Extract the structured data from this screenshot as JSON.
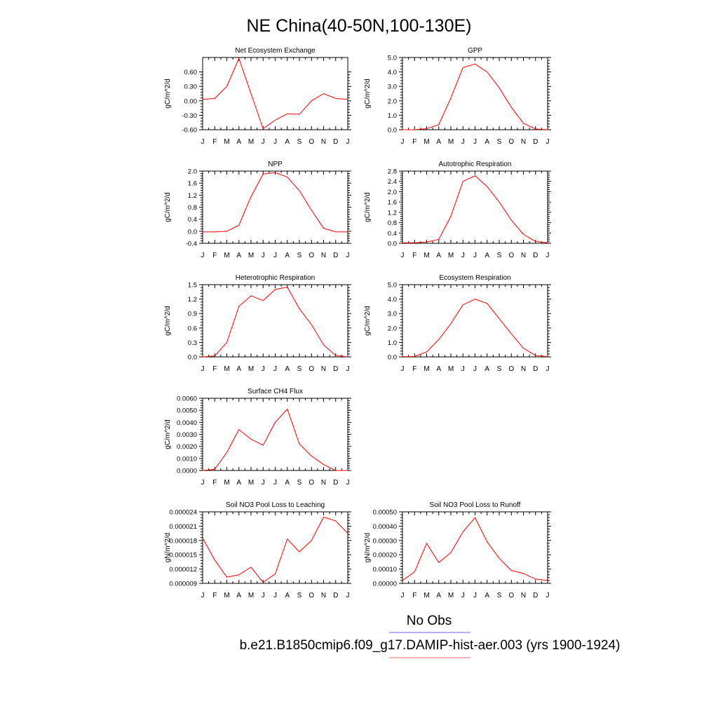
{
  "figure": {
    "title": "NE China(40-50N,100-130E)",
    "legend": [
      {
        "label": "No Obs",
        "color": "#6666ff"
      },
      {
        "label": "b.e21.B1850cmip6.f09_g17.DAMIP-hist-aer.003 (yrs 1900-1924)",
        "color": "#ff6666"
      }
    ]
  },
  "chart_data": [
    {
      "type": "line",
      "title": "Net Ecosystem Exchange",
      "ylabel": "gC/m^2/d",
      "x": [
        "J",
        "F",
        "M",
        "A",
        "M",
        "J",
        "J",
        "A",
        "S",
        "O",
        "N",
        "D",
        "J"
      ],
      "ylim": [
        -0.6,
        0.9
      ],
      "yticks": [
        -0.6,
        -0.3,
        0.0,
        0.3,
        0.6
      ],
      "ytick_labels": [
        "-0.60",
        "-0.30",
        "0.00",
        "0.30",
        "0.60"
      ],
      "series": [
        {
          "color": "#ff0000",
          "values": [
            0.03,
            0.05,
            0.3,
            0.88,
            0.15,
            -0.58,
            -0.4,
            -0.27,
            -0.28,
            0.0,
            0.15,
            0.05,
            0.03
          ]
        }
      ]
    },
    {
      "type": "line",
      "title": "GPP",
      "ylabel": "gC/m^2/d",
      "x": [
        "J",
        "F",
        "M",
        "A",
        "M",
        "J",
        "J",
        "A",
        "S",
        "O",
        "N",
        "D",
        "J"
      ],
      "ylim": [
        0,
        5
      ],
      "yticks": [
        0,
        1,
        2,
        3,
        4,
        5
      ],
      "ytick_labels": [
        "0.0",
        "1.0",
        "2.0",
        "3.0",
        "4.0",
        "5.0"
      ],
      "series": [
        {
          "color": "#ff0000",
          "values": [
            0.0,
            0.0,
            0.07,
            0.35,
            2.2,
            4.3,
            4.55,
            4.0,
            2.9,
            1.55,
            0.45,
            0.05,
            0.0
          ]
        }
      ]
    },
    {
      "type": "line",
      "title": "NPP",
      "ylabel": "gC/m^2/d",
      "x": [
        "J",
        "F",
        "M",
        "A",
        "M",
        "J",
        "J",
        "A",
        "S",
        "O",
        "N",
        "D",
        "J"
      ],
      "ylim": [
        -0.4,
        2.0
      ],
      "yticks": [
        -0.4,
        0.0,
        0.4,
        0.8,
        1.2,
        1.6,
        2.0
      ],
      "ytick_labels": [
        "-0.4",
        "0.0",
        "0.4",
        "0.8",
        "1.2",
        "1.6",
        "2.0"
      ],
      "series": [
        {
          "color": "#ff0000",
          "values": [
            -0.02,
            -0.02,
            0.0,
            0.2,
            1.15,
            1.9,
            1.95,
            1.8,
            1.35,
            0.7,
            0.1,
            -0.02,
            -0.02
          ]
        }
      ]
    },
    {
      "type": "line",
      "title": "Autotrophic Respiration",
      "ylabel": "gC/m^2/d",
      "x": [
        "J",
        "F",
        "M",
        "A",
        "M",
        "J",
        "J",
        "A",
        "S",
        "O",
        "N",
        "D",
        "J"
      ],
      "ylim": [
        0,
        2.8
      ],
      "yticks": [
        0,
        0.4,
        0.8,
        1.2,
        1.6,
        2.0,
        2.4,
        2.8
      ],
      "ytick_labels": [
        "0.0",
        "0.4",
        "0.8",
        "1.2",
        "1.6",
        "2.0",
        "2.4",
        "2.8"
      ],
      "series": [
        {
          "color": "#ff0000",
          "values": [
            0.02,
            0.02,
            0.05,
            0.15,
            1.05,
            2.4,
            2.62,
            2.2,
            1.6,
            0.9,
            0.35,
            0.07,
            0.02
          ]
        }
      ]
    },
    {
      "type": "line",
      "title": "Heterotrophic Respiration",
      "ylabel": "gC/m^2/d",
      "x": [
        "J",
        "F",
        "M",
        "A",
        "M",
        "J",
        "J",
        "A",
        "S",
        "O",
        "N",
        "D",
        "J"
      ],
      "ylim": [
        0,
        1.5
      ],
      "yticks": [
        0,
        0.3,
        0.6,
        0.9,
        1.2,
        1.5
      ],
      "ytick_labels": [
        "0.0",
        "0.3",
        "0.6",
        "0.9",
        "1.2",
        "1.5"
      ],
      "series": [
        {
          "color": "#ff0000",
          "values": [
            0.0,
            0.02,
            0.3,
            1.05,
            1.27,
            1.17,
            1.4,
            1.45,
            1.0,
            0.67,
            0.25,
            0.03,
            0.0
          ]
        }
      ]
    },
    {
      "type": "line",
      "title": "Ecosystem Respiration",
      "ylabel": "gC/m^2/d",
      "x": [
        "J",
        "F",
        "M",
        "A",
        "M",
        "J",
        "J",
        "A",
        "S",
        "O",
        "N",
        "D",
        "J"
      ],
      "ylim": [
        0,
        5
      ],
      "yticks": [
        0,
        1,
        2,
        3,
        4,
        5
      ],
      "ytick_labels": [
        "0.0",
        "1.0",
        "2.0",
        "3.0",
        "4.0",
        "5.0"
      ],
      "series": [
        {
          "color": "#ff0000",
          "values": [
            0.02,
            0.03,
            0.35,
            1.2,
            2.3,
            3.6,
            4.0,
            3.7,
            2.65,
            1.6,
            0.6,
            0.1,
            0.02
          ]
        }
      ]
    },
    {
      "type": "line",
      "title": "Surface CH4 Flux",
      "ylabel": "gC/m^2/d",
      "x": [
        "J",
        "F",
        "M",
        "A",
        "M",
        "J",
        "J",
        "A",
        "S",
        "O",
        "N",
        "D",
        "J"
      ],
      "ylim": [
        0,
        0.006
      ],
      "yticks": [
        0,
        0.001,
        0.002,
        0.003,
        0.004,
        0.005,
        0.006
      ],
      "ytick_labels": [
        "0.0000",
        "0.0010",
        "0.0020",
        "0.0030",
        "0.0040",
        "0.0050",
        "0.0060"
      ],
      "series": [
        {
          "color": "#ff0000",
          "values": [
            0.0,
            0.0001,
            0.0015,
            0.0034,
            0.0026,
            0.0021,
            0.004,
            0.0051,
            0.0022,
            0.0012,
            0.0005,
            0.0,
            0.0
          ]
        }
      ]
    },
    {
      "type": "line",
      "title": "Soil NO3 Pool Loss to Leaching",
      "ylabel": "gN/m^2/d",
      "x": [
        "J",
        "F",
        "M",
        "A",
        "M",
        "J",
        "J",
        "A",
        "S",
        "O",
        "N",
        "D",
        "J"
      ],
      "ylim": [
        9e-06,
        2.4e-05
      ],
      "yticks": [
        9e-06,
        1.2e-05,
        1.5e-05,
        1.8e-05,
        2.1e-05,
        2.4e-05
      ],
      "ytick_labels": [
        "0.000009",
        "0.000012",
        "0.000015",
        "0.000018",
        "0.000021",
        "0.000024"
      ],
      "series": [
        {
          "color": "#ff0000",
          "values": [
            1.85e-05,
            1.39e-05,
            1.03e-05,
            1.08e-05,
            1.24e-05,
            9.2e-06,
            1.1e-05,
            1.83e-05,
            1.56e-05,
            1.8e-05,
            2.29e-05,
            2.21e-05,
            1.95e-05
          ]
        }
      ]
    },
    {
      "type": "line",
      "title": "Soil NO3 Pool Loss to Runoff",
      "ylabel": "gN/m^2/d",
      "x": [
        "J",
        "F",
        "M",
        "A",
        "M",
        "J",
        "J",
        "A",
        "S",
        "O",
        "N",
        "D",
        "J"
      ],
      "ylim": [
        0,
        0.0005
      ],
      "yticks": [
        0,
        0.0001,
        0.0002,
        0.0003,
        0.0004,
        0.0005
      ],
      "ytick_labels": [
        "0.00000",
        "0.00010",
        "0.00020",
        "0.00030",
        "0.00040",
        "0.00050"
      ],
      "series": [
        {
          "color": "#ff0000",
          "values": [
            2e-05,
            8e-05,
            0.00028,
            0.000145,
            0.000215,
            0.00036,
            0.00046,
            0.00029,
            0.000175,
            9e-05,
            7e-05,
            3e-05,
            2e-05
          ]
        }
      ]
    }
  ]
}
